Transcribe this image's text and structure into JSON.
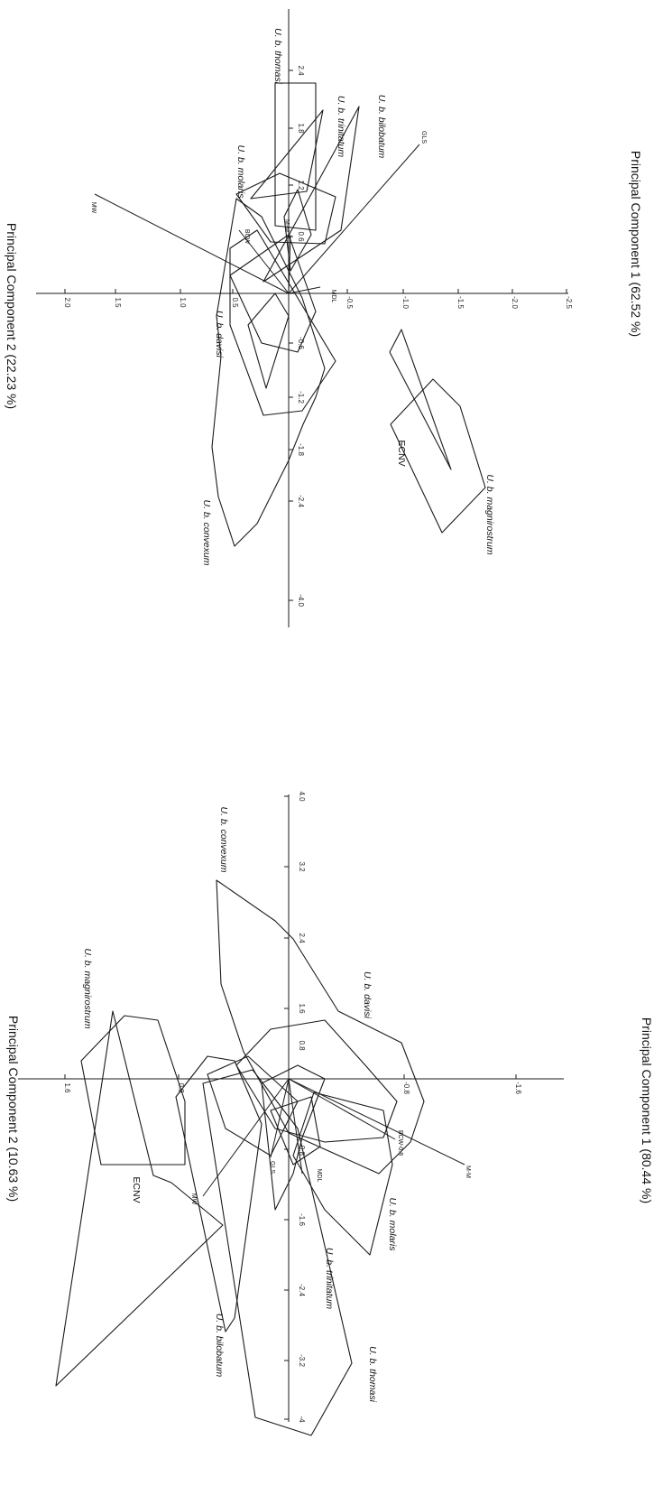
{
  "chart_data": [
    {
      "type": "scatter",
      "subtype": "principal-component-biplot-with-convex-hulls",
      "xlabel": "Principal Component 1 (80.44 %)",
      "ylabel": "Principal Component 2 (10.63 %)",
      "x_ticks": [
        "-4",
        "-3.2",
        "-2.4",
        "-1.6",
        "-0.8",
        "0.8",
        "1.6",
        "2.4",
        "3.2",
        "4.0"
      ],
      "y_ticks": [
        "1.6",
        "0.8",
        "-0.8",
        "-1.6"
      ],
      "xlim": [
        -4,
        4
      ],
      "ylim": [
        -2.5,
        2.5
      ],
      "groups": [
        "ECNV",
        "U. b. magnirostrum",
        "U. b. convexum",
        "U. b. davisi",
        "U. b. molaris",
        "U. b. trinitatum",
        "U. b. thomasi",
        "U. b. bilobatum"
      ],
      "vectors": [
        "MW",
        "GLS",
        "MDL",
        "BCW-0.8",
        "M-M"
      ]
    },
    {
      "type": "scatter",
      "subtype": "principal-component-biplot-with-convex-hulls",
      "xlabel": "Principal Component 1 (62.52 %)",
      "ylabel": "Principal Component 2 (22.23 %)",
      "x_ticks": [
        "-4.0",
        "-2.4",
        "-1.8",
        "-1.2",
        "-0.6",
        "0.6",
        "1.2",
        "1.8",
        "2.4"
      ],
      "y_ticks": [
        "2.0",
        "1.5",
        "1.0",
        "0.5",
        "-0.5",
        "-1.0",
        "-1.5",
        "-2.0",
        "-2.5"
      ],
      "xlim": [
        -4,
        3
      ],
      "ylim": [
        -2.5,
        2.5
      ],
      "groups": [
        "U. b. thomasi",
        "U. b. trinitatum",
        "U. b. bilobatum",
        "U. b. molaris",
        "U. b. davisi",
        "U. b. convexum",
        "ECNV",
        "U. b. magnirostrum"
      ],
      "vectors": [
        "MW",
        "BCW",
        "M-M",
        "MDL",
        "GLS"
      ]
    }
  ]
}
